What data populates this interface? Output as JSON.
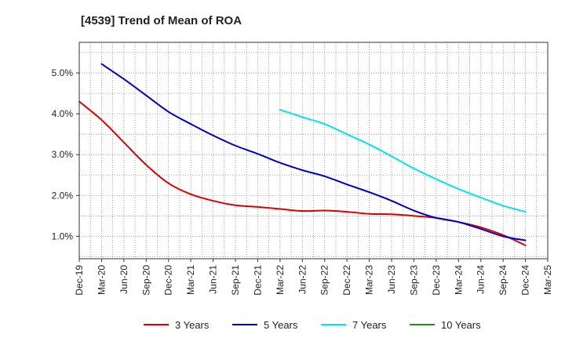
{
  "chart_data": {
    "type": "line",
    "title": "[4539]  Trend of Mean of ROA",
    "xlabel": "",
    "ylabel": "",
    "categories": [
      "Dec-19",
      "Mar-20",
      "Jun-20",
      "Sep-20",
      "Dec-20",
      "Mar-21",
      "Jun-21",
      "Sep-21",
      "Dec-21",
      "Mar-22",
      "Jun-22",
      "Sep-22",
      "Dec-22",
      "Mar-23",
      "Jun-23",
      "Sep-23",
      "Dec-23",
      "Mar-24",
      "Jun-24",
      "Sep-24",
      "Dec-24",
      "Mar-25"
    ],
    "ylim": [
      0.45,
      5.75
    ],
    "yticks": [
      1.0,
      2.0,
      3.0,
      4.0,
      5.0
    ],
    "ytick_labels": [
      "1.0%",
      "2.0%",
      "3.0%",
      "4.0%",
      "5.0%"
    ],
    "grid": true,
    "legend_position": "bottom",
    "series": [
      {
        "name": "3 Years",
        "color": "#dd0000",
        "values": [
          4.3,
          3.85,
          3.3,
          2.75,
          2.3,
          2.03,
          1.87,
          1.76,
          1.72,
          1.67,
          1.62,
          1.63,
          1.6,
          1.55,
          1.54,
          1.5,
          1.45,
          1.35,
          1.22,
          1.03,
          0.78,
          null
        ]
      },
      {
        "name": "5 Years",
        "color": "#0000cc",
        "values": [
          null,
          5.22,
          4.85,
          4.45,
          4.05,
          3.75,
          3.47,
          3.22,
          3.02,
          2.8,
          2.62,
          2.47,
          2.27,
          2.08,
          1.87,
          1.63,
          1.45,
          1.35,
          1.18,
          1.0,
          0.9,
          null
        ]
      },
      {
        "name": "7 Years",
        "color": "#00e5ee",
        "values": [
          null,
          null,
          null,
          null,
          null,
          null,
          null,
          null,
          null,
          4.1,
          3.92,
          3.75,
          3.5,
          3.25,
          2.96,
          2.66,
          2.4,
          2.16,
          1.95,
          1.75,
          1.6,
          null
        ]
      },
      {
        "name": "10 Years",
        "color": "#228b22",
        "values": [
          null,
          null,
          null,
          null,
          null,
          null,
          null,
          null,
          null,
          null,
          null,
          null,
          null,
          null,
          null,
          null,
          null,
          null,
          null,
          null,
          null,
          null
        ]
      }
    ]
  }
}
